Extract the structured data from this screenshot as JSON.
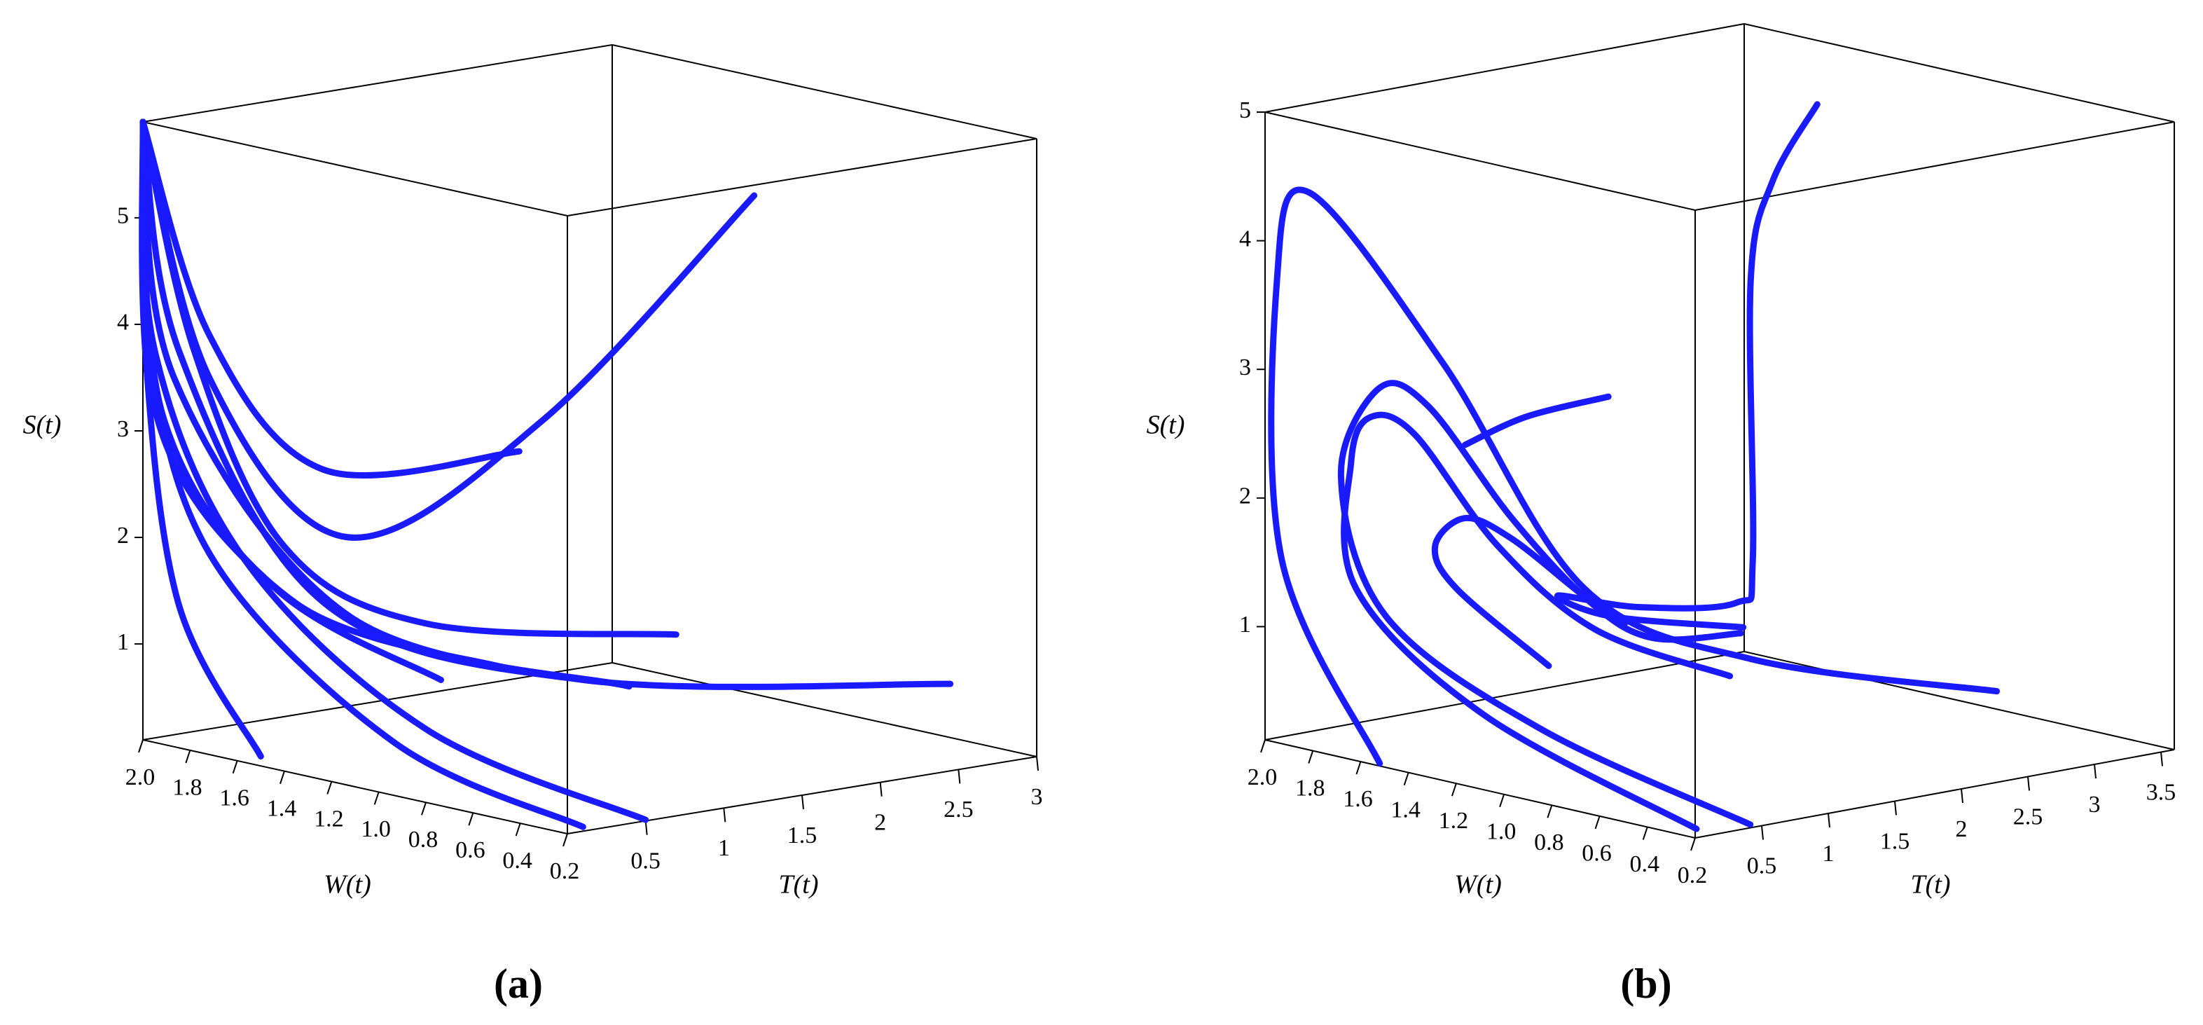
{
  "chart_data": [
    {
      "type": "line3d",
      "caption": "(a)",
      "xlabel": "W(t)",
      "ylabel": "T(t)",
      "zlabel": "S(t)",
      "color": "#1a1aff",
      "wlim": [
        0.2,
        2.0
      ],
      "tlim": [
        0,
        3
      ],
      "slim": [
        0.1,
        5.9
      ],
      "wticks": [
        {
          "value": 2,
          "label": "2.0"
        },
        1.8,
        1.6,
        1.4,
        1.2,
        {
          "value": 1,
          "label": "1.0"
        },
        0.8,
        0.6,
        0.4,
        0.2
      ],
      "tticks": [
        0.5,
        1,
        1.5,
        2,
        2.5,
        3
      ],
      "sticks": [
        1,
        2,
        3,
        4,
        5
      ],
      "series": [
        {
          "w": [
            2,
            1.85,
            1.6,
            1.3,
            1.0
          ],
          "t": [
            0,
            0.2,
            0.7,
            1.5,
            2.4
          ],
          "s": [
            5.9,
            3.52,
            2.03,
            3.08,
            5.12
          ]
        },
        {
          "w": [
            2,
            1.85,
            1.6,
            1.2
          ],
          "t": [
            0,
            0.2,
            0.55,
            1.2
          ],
          "s": [
            5.9,
            3.92,
            2.7,
            2.91
          ]
        },
        {
          "w": [
            2,
            1.85,
            1.6,
            1.2,
            0.8
          ],
          "t": [
            0,
            0.1,
            0.3,
            0.6,
            1.6
          ],
          "s": [
            5.9,
            3.81,
            2.04,
            1.44,
            1.29
          ]
        },
        {
          "w": [
            2,
            1.9,
            1.5,
            1.0,
            0.5
          ],
          "t": [
            0,
            0.08,
            0.4,
            1.3,
            2.9
          ],
          "s": [
            5.9,
            3.78,
            1.54,
            0.84,
            0.66
          ]
        },
        {
          "w": [
            2,
            1.9,
            1.45,
            0.9
          ],
          "t": [
            0,
            0.05,
            0.5,
            1.45
          ],
          "s": [
            5.9,
            3.53,
            1.4,
            0.79
          ]
        },
        {
          "w": [
            2,
            1.93,
            1.55,
            1.1
          ],
          "t": [
            0,
            0.03,
            0.3,
            1.0
          ],
          "s": [
            5.9,
            3.13,
            1.53,
            0.96
          ]
        },
        {
          "w": [
            2,
            1.95,
            1.6,
            1.3
          ],
          "t": [
            0,
            0.02,
            0.25,
            0.85
          ],
          "s": [
            5.9,
            3.12,
            1.65,
            0.8
          ]
        },
        {
          "w": [
            2,
            1.95,
            1.6,
            1.0,
            0.2
          ],
          "t": [
            0,
            0,
            0.05,
            0.3,
            0.5
          ],
          "s": [
            5.9,
            3.78,
            1.97,
            0.62,
            0.11
          ]
        },
        {
          "w": [
            2,
            1.97,
            1.7,
            1.0,
            0.2
          ],
          "t": [
            0,
            0,
            0,
            0.1,
            0.1
          ],
          "s": [
            5.9,
            3.77,
            1.93,
            0.54,
            0.14
          ]
        },
        {
          "w": [
            2,
            1.99,
            1.85,
            1.5
          ],
          "t": [
            0,
            0,
            0,
            0
          ],
          "s": [
            5.9,
            3.76,
            1.46,
            0.19
          ]
        }
      ]
    },
    {
      "type": "line3d",
      "caption": "(b)",
      "xlabel": "W(t)",
      "ylabel": "T(t)",
      "zlabel": "S(t)",
      "color": "#1a1aff",
      "wlim": [
        0.2,
        2.0
      ],
      "tlim": [
        0,
        3.6
      ],
      "slim": [
        0.12,
        5
      ],
      "wticks": [
        {
          "value": 2,
          "label": "2.0"
        },
        1.8,
        1.6,
        1.4,
        1.2,
        {
          "value": 1,
          "label": "1.0"
        },
        0.8,
        0.6,
        0.4,
        0.2
      ],
      "tticks": [
        0.5,
        1,
        1.5,
        2,
        2.5,
        3,
        3.5
      ],
      "sticks": [
        1,
        2,
        3,
        4,
        5
      ],
      "series": [
        {
          "w": [
            1.52,
            1.93,
            1.95,
            1.87,
            1.42,
            1.0,
            0.8,
            0.72
          ],
          "t": [
            0,
            0,
            0,
            0.1,
            0.3,
            0.6,
            1.5,
            3.2
          ],
          "s": [
            0.14,
            1.55,
            3.72,
            4.41,
            3.23,
            1.61,
            0.97,
            0.43
          ]
        },
        {
          "w": [
            1.36,
            1.38,
            1.36,
            1.24,
            1.14,
            1.16,
            1.22,
            1.05,
            0.89
          ],
          "t": [
            3.0,
            2.7,
            2.5,
            2.3,
            2.0,
            1.3,
            0.8,
            0.9,
            1.6
          ],
          "s": [
            4.76,
            4.21,
            3.49,
            1.4,
            1.17,
            1.26,
            1.42,
            1.31,
            1.16
          ]
        },
        {
          "w": [
            0.22,
            0.96,
            1.52,
            1.71,
            1.58,
            1.43,
            1.19,
            1.03,
            0.99,
            0.9
          ],
          "t": [
            0.45,
            0.2,
            0.05,
            0.05,
            0.1,
            0.2,
            0.4,
            0.7,
            1.1,
            1.6
          ],
          "s": [
            0.13,
            0.61,
            1.27,
            2.28,
            3.01,
            2.92,
            2.11,
            1.47,
            1.13,
            1.11
          ]
        },
        {
          "w": [
            0.98,
            1.31,
            1.4,
            1.33,
            1.19,
            1.06,
            1.05
          ],
          "t": [
            0.3,
            0.2,
            0.2,
            0.3,
            0.4,
            0.7,
            1.0
          ],
          "s": [
            1.07,
            1.55,
            1.84,
            2.07,
            1.95,
            1.51,
            1.24
          ]
        },
        {
          "w": [
            0.25,
            1.14,
            1.62,
            1.64,
            1.59,
            1.46,
            1.22,
            1.06,
            0.89
          ],
          "t": [
            0.1,
            0.1,
            0,
            0,
            0.05,
            0.15,
            0.35,
            0.8,
            1.5
          ],
          "s": [
            0.15,
            0.66,
            1.46,
            2.43,
            2.79,
            2.7,
            1.89,
            1.22,
            0.8
          ]
        },
        {
          "w": [
            1.33,
            1.24,
            1.12
          ],
          "t": [
            0.3,
            0.6,
            1.0
          ],
          "s": [
            2.64,
            2.84,
            2.97
          ]
        }
      ]
    }
  ]
}
